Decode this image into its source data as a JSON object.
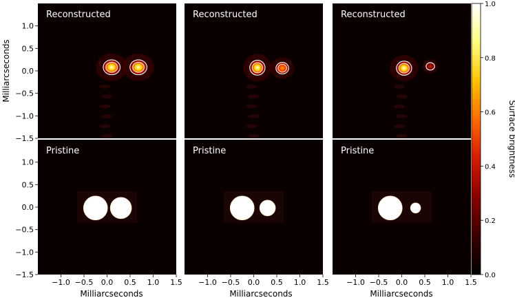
{
  "figure": {
    "panel_labels": {
      "reconstructed": "Reconstructed",
      "pristine": "Pristine"
    },
    "colorbar_label": "Surface brightness",
    "colormap": "hot",
    "colormap_stops": [
      "#000000",
      "#3a0000",
      "#8a0000",
      "#d81a00",
      "#ff6a00",
      "#ffc300",
      "#ffff80",
      "#ffffff"
    ],
    "background_color": "#0a0000",
    "contour_color": "#ffffff"
  },
  "chart_data": {
    "type": "heatmap",
    "layout": "2 rows x 3 columns of images with a shared colorbar",
    "xlabel": "Milliarcseconds",
    "ylabel": "Milliarcseconds",
    "xlim": [
      -1.5,
      1.5
    ],
    "ylim": [
      -1.5,
      1.5
    ],
    "x_ticks": [
      "−1.0",
      "−0.5",
      "0.0",
      "0.5",
      "1.0",
      "1.5"
    ],
    "y_ticks_top": [
      "1.0",
      "0.5",
      "0.0",
      "−0.5",
      "−1.0",
      "−1.5"
    ],
    "y_ticks_bottom": [
      "1.0",
      "0.5",
      "0.0",
      "−0.5",
      "−1.0",
      "−1.5"
    ],
    "colorbar": {
      "range": [
        0.0,
        1.0
      ],
      "ticks": [
        "0.0",
        "0.2",
        "0.4",
        "0.6",
        "0.8",
        "1.0"
      ]
    },
    "panels": [
      {
        "row": "Reconstructed",
        "col": 1,
        "sources": [
          {
            "x": 0.1,
            "y": 0.08,
            "rx": 0.2,
            "ry": 0.18,
            "peak": 1.0
          },
          {
            "x": 0.68,
            "y": 0.08,
            "rx": 0.2,
            "ry": 0.18,
            "peak": 0.92
          }
        ]
      },
      {
        "row": "Reconstructed",
        "col": 2,
        "sources": [
          {
            "x": 0.08,
            "y": 0.07,
            "rx": 0.18,
            "ry": 0.18,
            "peak": 1.0
          },
          {
            "x": 0.62,
            "y": 0.06,
            "rx": 0.15,
            "ry": 0.14,
            "peak": 0.55
          }
        ]
      },
      {
        "row": "Reconstructed",
        "col": 3,
        "sources": [
          {
            "x": 0.05,
            "y": 0.06,
            "rx": 0.18,
            "ry": 0.17,
            "peak": 1.0
          },
          {
            "x": 0.62,
            "y": 0.1,
            "rx": 0.1,
            "ry": 0.09,
            "peak": 0.28
          }
        ]
      },
      {
        "row": "Pristine",
        "col": 1,
        "sources": [
          {
            "x": -0.25,
            "y": -0.02,
            "r": 0.26,
            "peak": 1.0
          },
          {
            "x": 0.3,
            "y": -0.02,
            "r": 0.23,
            "peak": 1.0
          }
        ]
      },
      {
        "row": "Pristine",
        "col": 2,
        "sources": [
          {
            "x": -0.25,
            "y": -0.02,
            "r": 0.26,
            "peak": 1.0
          },
          {
            "x": 0.3,
            "y": -0.02,
            "r": 0.17,
            "peak": 1.0
          }
        ]
      },
      {
        "row": "Pristine",
        "col": 3,
        "sources": [
          {
            "x": -0.25,
            "y": -0.02,
            "r": 0.26,
            "peak": 1.0
          },
          {
            "x": 0.3,
            "y": -0.02,
            "r": 0.11,
            "peak": 1.0
          }
        ]
      }
    ]
  }
}
